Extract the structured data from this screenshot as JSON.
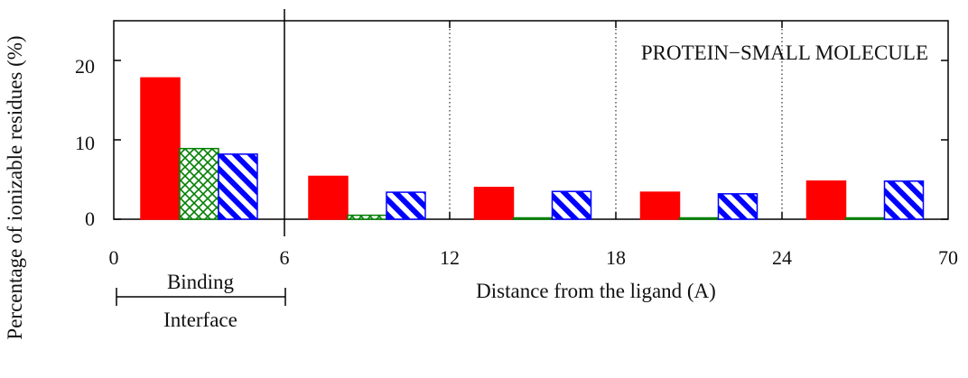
{
  "chart_data": {
    "type": "bar",
    "title": "PROTEIN−SMALL MOLECULE",
    "xlabel": "Distance from the ligand (A)",
    "ylabel": "Percentage of ionizable residues (%)",
    "ylim": [
      0,
      25
    ],
    "yticks": [
      "0",
      "10",
      "20"
    ],
    "xticks": [
      "0",
      "6",
      "12",
      "18",
      "24",
      "70"
    ],
    "region_label_top": "Binding",
    "region_label_bottom": "Interface",
    "grid": "dotted vertical separators between distance bins",
    "legend": "none",
    "categories": [
      "0-6",
      "6-12",
      "12-18",
      "18-24",
      "24-70"
    ],
    "series": [
      {
        "color": "#ff0000",
        "pattern": "solid",
        "values": [
          17.8,
          5.4,
          4.0,
          3.4,
          4.8
        ]
      },
      {
        "color": "#008000",
        "pattern": "crosshatch",
        "values": [
          8.9,
          0.5,
          0.1,
          0.1,
          0.1
        ]
      },
      {
        "color": "#0000ff",
        "pattern": "diagonal",
        "values": [
          8.2,
          3.4,
          3.5,
          3.2,
          4.8
        ]
      }
    ]
  }
}
